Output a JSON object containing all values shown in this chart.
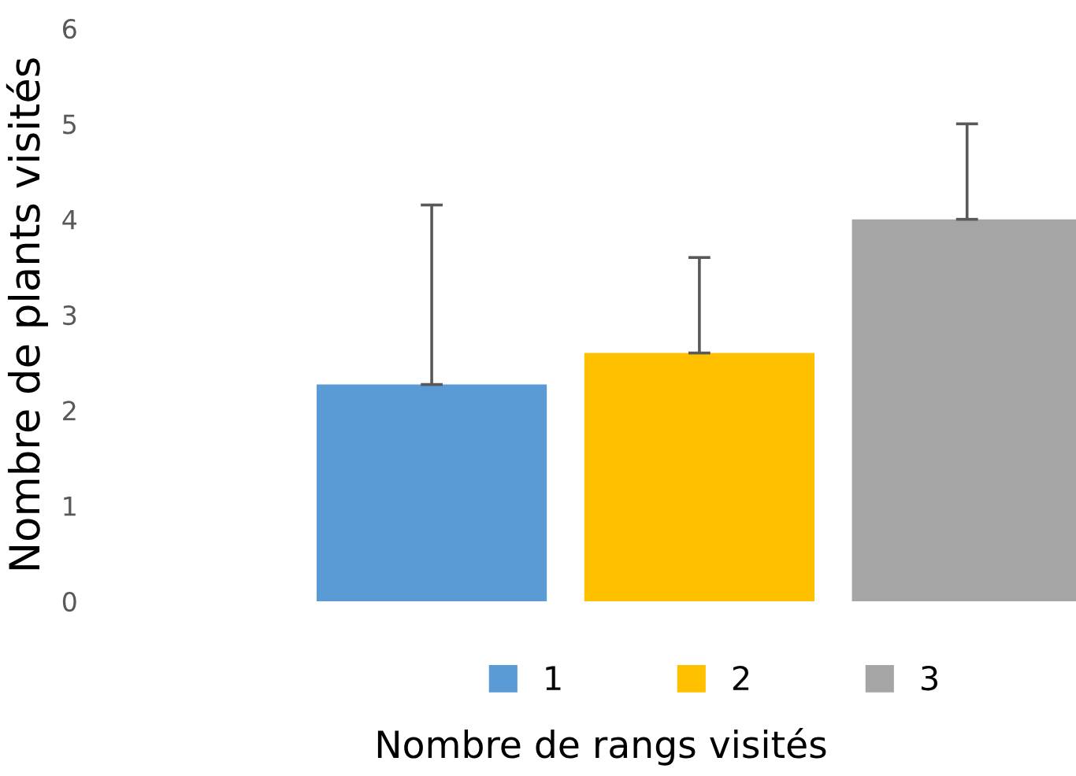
{
  "chart_data": {
    "type": "bar",
    "xlabel": "Nombre de rangs visités",
    "ylabel": "Nombre de plants visités",
    "categories": [
      null
    ],
    "series": [
      {
        "name": "1",
        "color": "#5b9bd5",
        "values": [
          2.27
        ],
        "errors": [
          [
            2.27,
            4.15
          ]
        ]
      },
      {
        "name": "2",
        "color": "#ffc000",
        "values": [
          2.6
        ],
        "errors": [
          [
            2.6,
            3.6
          ]
        ]
      },
      {
        "name": "3",
        "color": "#a5a5a5",
        "values": [
          4.0
        ],
        "errors": [
          [
            4.0,
            5.0
          ]
        ]
      }
    ],
    "ylim": [
      0,
      6
    ],
    "yticks": [
      0,
      1,
      2,
      3,
      4,
      5,
      6
    ],
    "grid": false,
    "legend": "bottom"
  }
}
